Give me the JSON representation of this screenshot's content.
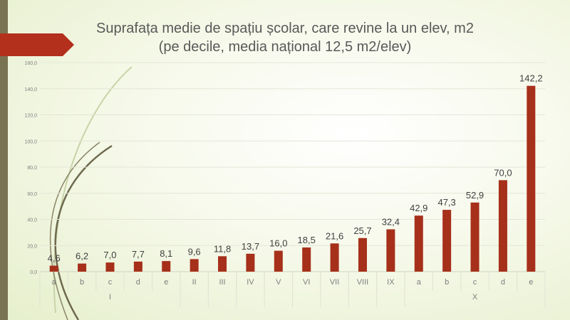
{
  "chart_data": {
    "type": "bar",
    "title": "Suprafața medie de spațiu școlar, care revine la un elev, m2",
    "subtitle": "(pe decile, media național 12,5 m2/elev)",
    "ylim": [
      0,
      160
    ],
    "yticks": [
      "0,0",
      "20,0",
      "40,0",
      "60,0",
      "80,0",
      "100,0",
      "120,0",
      "140,0",
      "160,0"
    ],
    "grid": true,
    "categories": [
      "a",
      "b",
      "c",
      "d",
      "e",
      "II",
      "III",
      "IV",
      "V",
      "VI",
      "VII",
      "VIII",
      "IX",
      "a",
      "b",
      "c",
      "d",
      "e"
    ],
    "groups": [
      {
        "label": "I",
        "span": 5
      },
      {
        "label": "",
        "span": 1
      },
      {
        "label": "",
        "span": 1
      },
      {
        "label": "",
        "span": 1
      },
      {
        "label": "",
        "span": 1
      },
      {
        "label": "",
        "span": 1
      },
      {
        "label": "",
        "span": 1
      },
      {
        "label": "",
        "span": 1
      },
      {
        "label": "",
        "span": 1
      },
      {
        "label": "X",
        "span": 5
      }
    ],
    "values": [
      4.6,
      6.2,
      7.0,
      7.7,
      8.1,
      9.6,
      11.8,
      13.7,
      16.0,
      18.5,
      21.6,
      25.7,
      32.4,
      42.9,
      47.3,
      52.9,
      70.0,
      142.2
    ],
    "value_labels": [
      "4,6",
      "6,2",
      "7,0",
      "7,7",
      "8,1",
      "9,6",
      "11,8",
      "13,7",
      "16,0",
      "18,5",
      "21,6",
      "25,7",
      "32,4",
      "42,9",
      "47,3",
      "52,9",
      "70,0",
      "142,2"
    ],
    "bar_color": "#a6301a"
  },
  "theme": {
    "strip_color": "#7a7352",
    "arrow_color": "#b3301c",
    "decor_color": "#6e6a4e",
    "decor_light": "#c9d3a8"
  }
}
